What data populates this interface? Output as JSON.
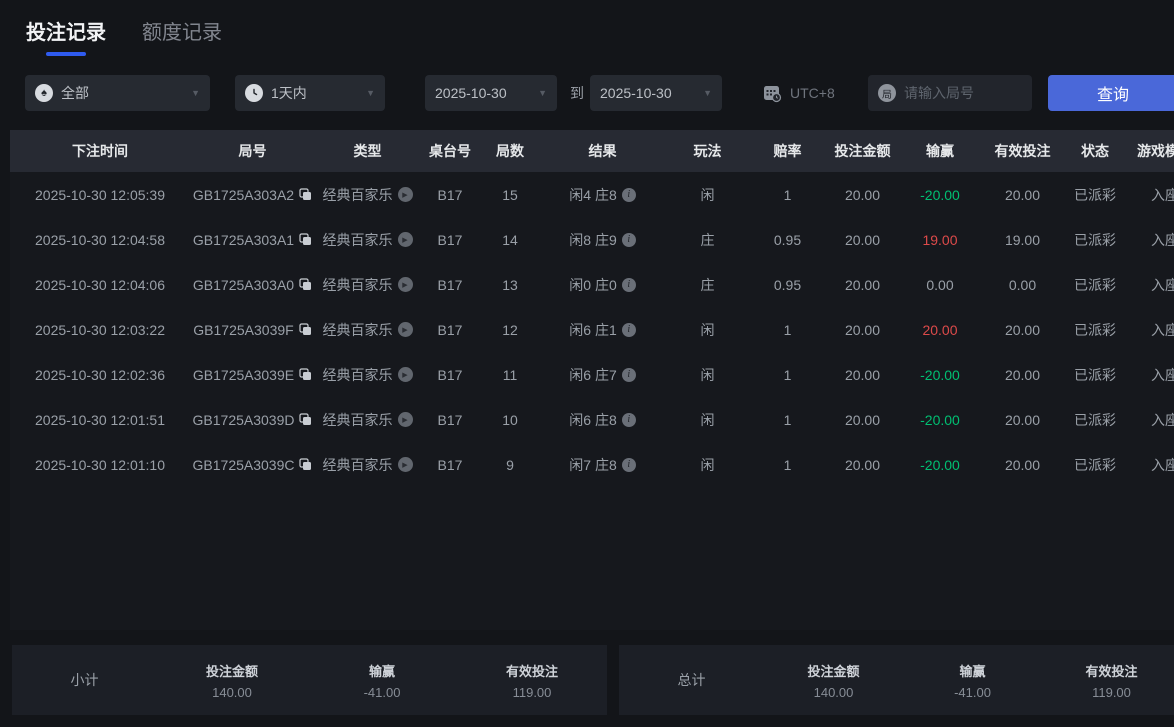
{
  "tabs": [
    {
      "label": "投注记录",
      "active": true
    },
    {
      "label": "额度记录",
      "active": false
    }
  ],
  "filters": {
    "game_type": "全部",
    "time_range": "1天内",
    "date_from": "2025-10-30",
    "to_label": "到",
    "date_to": "2025-10-30",
    "timezone": "UTC+8",
    "round_icon_char": "局",
    "round_placeholder": "请输入局号",
    "query_label": "查询"
  },
  "table": {
    "headers": [
      "下注时间",
      "局号",
      "类型",
      "桌台号",
      "局数",
      "结果",
      "玩法",
      "赔率",
      "投注金额",
      "输赢",
      "有效投注",
      "状态",
      "游戏模式"
    ],
    "rows": [
      {
        "time": "2025-10-30 12:05:39",
        "round_id": "GB1725A303A2",
        "type": "经典百家乐",
        "table_no": "B17",
        "round": "15",
        "result": "闲4 庄8",
        "play": "闲",
        "odds": "1",
        "bet": "20.00",
        "win_loss": "-20.00",
        "wl_color": "green",
        "valid": "20.00",
        "status": "已派彩",
        "mode": "入座"
      },
      {
        "time": "2025-10-30 12:04:58",
        "round_id": "GB1725A303A1",
        "type": "经典百家乐",
        "table_no": "B17",
        "round": "14",
        "result": "闲8 庄9",
        "play": "庄",
        "odds": "0.95",
        "bet": "20.00",
        "win_loss": "19.00",
        "wl_color": "red",
        "valid": "19.00",
        "status": "已派彩",
        "mode": "入座"
      },
      {
        "time": "2025-10-30 12:04:06",
        "round_id": "GB1725A303A0",
        "type": "经典百家乐",
        "table_no": "B17",
        "round": "13",
        "result": "闲0 庄0",
        "play": "庄",
        "odds": "0.95",
        "bet": "20.00",
        "win_loss": "0.00",
        "wl_color": "neutral",
        "valid": "0.00",
        "status": "已派彩",
        "mode": "入座"
      },
      {
        "time": "2025-10-30 12:03:22",
        "round_id": "GB1725A3039F",
        "type": "经典百家乐",
        "table_no": "B17",
        "round": "12",
        "result": "闲6 庄1",
        "play": "闲",
        "odds": "1",
        "bet": "20.00",
        "win_loss": "20.00",
        "wl_color": "red",
        "valid": "20.00",
        "status": "已派彩",
        "mode": "入座"
      },
      {
        "time": "2025-10-30 12:02:36",
        "round_id": "GB1725A3039E",
        "type": "经典百家乐",
        "table_no": "B17",
        "round": "11",
        "result": "闲6 庄7",
        "play": "闲",
        "odds": "1",
        "bet": "20.00",
        "win_loss": "-20.00",
        "wl_color": "green",
        "valid": "20.00",
        "status": "已派彩",
        "mode": "入座"
      },
      {
        "time": "2025-10-30 12:01:51",
        "round_id": "GB1725A3039D",
        "type": "经典百家乐",
        "table_no": "B17",
        "round": "10",
        "result": "闲6 庄8",
        "play": "闲",
        "odds": "1",
        "bet": "20.00",
        "win_loss": "-20.00",
        "wl_color": "green",
        "valid": "20.00",
        "status": "已派彩",
        "mode": "入座"
      },
      {
        "time": "2025-10-30 12:01:10",
        "round_id": "GB1725A3039C",
        "type": "经典百家乐",
        "table_no": "B17",
        "round": "9",
        "result": "闲7 庄8",
        "play": "闲",
        "odds": "1",
        "bet": "20.00",
        "win_loss": "-20.00",
        "wl_color": "green",
        "valid": "20.00",
        "status": "已派彩",
        "mode": "入座"
      }
    ]
  },
  "summary": {
    "subtotal": {
      "label": "小计",
      "bet_label": "投注金额",
      "bet": "140.00",
      "wl_label": "输赢",
      "wl": "-41.00",
      "valid_label": "有效投注",
      "valid": "119.00"
    },
    "total": {
      "label": "总计",
      "bet_label": "投注金额",
      "bet": "140.00",
      "wl_label": "输赢",
      "wl": "-41.00",
      "valid_label": "有效投注",
      "valid": "119.00"
    }
  },
  "colors": {
    "accent_blue": "#2f5bef",
    "button_blue": "#4a68d9",
    "win_red": "#dd4a4a",
    "loss_green": "#00bf72"
  }
}
